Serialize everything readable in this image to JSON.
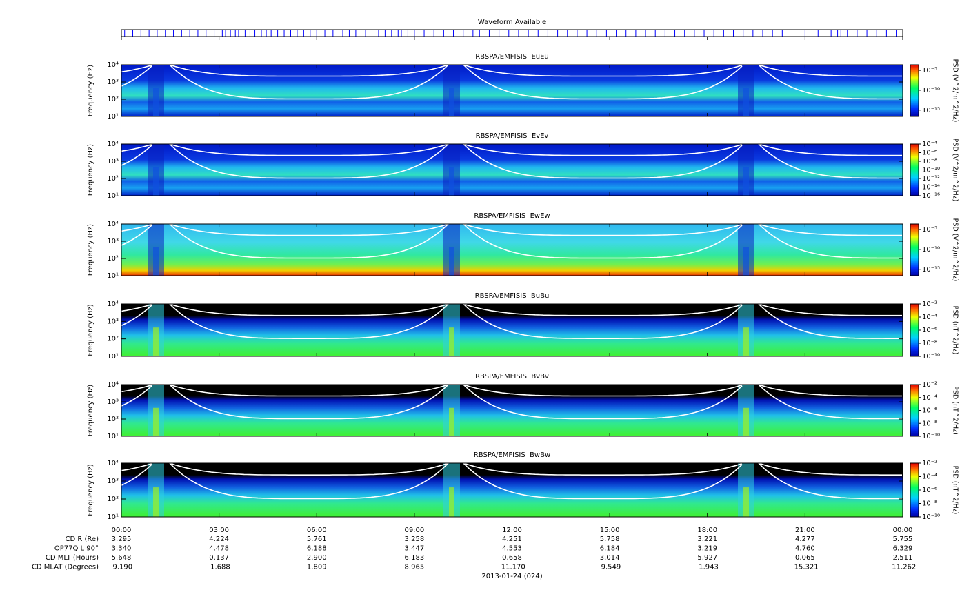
{
  "chart_data": [
    {
      "type": "rug",
      "title": "Waveform Available",
      "color": "#0000ff",
      "x": [
        0.1,
        0.35,
        0.6,
        0.85,
        1.1,
        1.35,
        1.6,
        1.85,
        2.1,
        2.35,
        2.6,
        2.85,
        3.1,
        3.2,
        3.35,
        3.5,
        3.6,
        3.8,
        3.95,
        4.1,
        4.3,
        4.45,
        4.6,
        4.8,
        5.0,
        5.2,
        5.4,
        5.6,
        5.8,
        6.0,
        6.25,
        6.5,
        6.8,
        7.0,
        7.2,
        7.5,
        7.7,
        7.9,
        8.1,
        8.3,
        8.5,
        8.6,
        8.8,
        9.0,
        9.3,
        9.6,
        9.9,
        10.2,
        10.5,
        10.8,
        11.0,
        11.3,
        11.6,
        11.9,
        12.2,
        12.5,
        12.8,
        13.1,
        13.4,
        13.7,
        14.0,
        14.3,
        14.6,
        14.9,
        15.2,
        15.5,
        15.8,
        16.1,
        16.4,
        16.7,
        17.0,
        17.3,
        17.6,
        17.9,
        18.2,
        18.5,
        18.8,
        19.1,
        19.4,
        19.7,
        20.0,
        20.3,
        20.6,
        21.0,
        21.4,
        21.8,
        22.0,
        22.1,
        22.3,
        22.6,
        22.9,
        23.2,
        23.5,
        23.8
      ]
    },
    {
      "type": "spectrogram",
      "title": "RBSPA/EMFISIS  EuEu",
      "ylabel": "Frequency (Hz)",
      "log_y": true,
      "ylim": [
        10,
        10000
      ],
      "yticks": [
        {
          "value": 10,
          "label": "10¹"
        },
        {
          "value": 100,
          "label": "10²"
        },
        {
          "value": 1000,
          "label": "10³"
        },
        {
          "value": 10000,
          "label": "10⁴"
        }
      ],
      "colorbar_label": "PSD (V^2/m^2/Hz)",
      "log_z": true,
      "zlim": [
        2.5e-17,
        0.00025
      ],
      "zticks": [
        {
          "value": 1e-05,
          "label": "10⁻⁵"
        },
        {
          "value": 1e-10,
          "label": "10⁻¹⁰"
        },
        {
          "value": 1e-15,
          "label": "10⁻¹⁵"
        }
      ]
    },
    {
      "type": "spectrogram",
      "title": "RBSPA/EMFISIS  EvEv",
      "ylabel": "Frequency (Hz)",
      "log_y": true,
      "ylim": [
        10,
        10000
      ],
      "yticks": [
        {
          "value": 10,
          "label": "10¹"
        },
        {
          "value": 100,
          "label": "10²"
        },
        {
          "value": 1000,
          "label": "10³"
        },
        {
          "value": 10000,
          "label": "10⁴"
        }
      ],
      "colorbar_label": "PSD (V^2/m^2/Hz)",
      "log_z": true,
      "zlim": [
        1e-16,
        0.0001
      ],
      "zticks": [
        {
          "value": 0.0001,
          "label": "10⁻⁴"
        },
        {
          "value": 1e-06,
          "label": "10⁻⁶"
        },
        {
          "value": 1e-08,
          "label": "10⁻⁸"
        },
        {
          "value": 1e-10,
          "label": "10⁻¹⁰"
        },
        {
          "value": 1e-12,
          "label": "10⁻¹²"
        },
        {
          "value": 1e-14,
          "label": "10⁻¹⁴"
        },
        {
          "value": 1e-16,
          "label": "10⁻¹⁶"
        }
      ]
    },
    {
      "type": "spectrogram",
      "title": "RBSPA/EMFISIS  EwEw",
      "ylabel": "Frequency (Hz)",
      "log_y": true,
      "ylim": [
        10,
        10000
      ],
      "yticks": [
        {
          "value": 10,
          "label": "10¹"
        },
        {
          "value": 100,
          "label": "10²"
        },
        {
          "value": 1000,
          "label": "10³"
        },
        {
          "value": 10000,
          "label": "10⁴"
        }
      ],
      "colorbar_label": "PSD (V^2/m^2/Hz)",
      "log_z": true,
      "zlim": [
        2.5e-17,
        0.00025
      ],
      "zticks": [
        {
          "value": 1e-05,
          "label": "10⁻⁵"
        },
        {
          "value": 1e-10,
          "label": "10⁻¹⁰"
        },
        {
          "value": 1e-15,
          "label": "10⁻¹⁵"
        }
      ]
    },
    {
      "type": "spectrogram",
      "title": "RBSPA/EMFISIS  BuBu",
      "ylabel": "Frequency (Hz)",
      "log_y": true,
      "ylim": [
        10,
        10000
      ],
      "yticks": [
        {
          "value": 10,
          "label": "10¹"
        },
        {
          "value": 100,
          "label": "10²"
        },
        {
          "value": 1000,
          "label": "10³"
        },
        {
          "value": 10000,
          "label": "10⁴"
        }
      ],
      "colorbar_label": "PSD (nT^2/Hz)",
      "log_z": true,
      "zlim": [
        1e-10,
        0.01
      ],
      "zticks": [
        {
          "value": 0.01,
          "label": "10⁻²"
        },
        {
          "value": 0.0001,
          "label": "10⁻⁴"
        },
        {
          "value": 1e-06,
          "label": "10⁻⁶"
        },
        {
          "value": 1e-08,
          "label": "10⁻⁸"
        },
        {
          "value": 1e-10,
          "label": "10⁻¹⁰"
        }
      ]
    },
    {
      "type": "spectrogram",
      "title": "RBSPA/EMFISIS  BvBv",
      "ylabel": "Frequency (Hz)",
      "log_y": true,
      "ylim": [
        10,
        10000
      ],
      "yticks": [
        {
          "value": 10,
          "label": "10¹"
        },
        {
          "value": 100,
          "label": "10²"
        },
        {
          "value": 1000,
          "label": "10³"
        },
        {
          "value": 10000,
          "label": "10⁴"
        }
      ],
      "colorbar_label": "PSD (nT^2/Hz)",
      "log_z": true,
      "zlim": [
        1e-10,
        0.01
      ],
      "zticks": [
        {
          "value": 0.01,
          "label": "10⁻²"
        },
        {
          "value": 0.0001,
          "label": "10⁻⁴"
        },
        {
          "value": 1e-06,
          "label": "10⁻⁶"
        },
        {
          "value": 1e-08,
          "label": "10⁻⁸"
        },
        {
          "value": 1e-10,
          "label": "10⁻¹⁰"
        }
      ]
    },
    {
      "type": "spectrogram",
      "title": "RBSPA/EMFISIS  BwBw",
      "ylabel": "Frequency (Hz)",
      "log_y": true,
      "ylim": [
        10,
        10000
      ],
      "yticks": [
        {
          "value": 10,
          "label": "10¹"
        },
        {
          "value": 100,
          "label": "10²"
        },
        {
          "value": 1000,
          "label": "10³"
        },
        {
          "value": 10000,
          "label": "10⁴"
        }
      ],
      "colorbar_label": "PSD (nT^2/Hz)",
      "log_z": true,
      "zlim": [
        1e-10,
        0.01
      ],
      "zticks": [
        {
          "value": 0.01,
          "label": "10⁻²"
        },
        {
          "value": 0.0001,
          "label": "10⁻⁴"
        },
        {
          "value": 1e-06,
          "label": "10⁻⁶"
        },
        {
          "value": 1e-08,
          "label": "10⁻⁸"
        },
        {
          "value": 1e-10,
          "label": "10⁻¹⁰"
        }
      ]
    }
  ],
  "x_axis": {
    "xlim": [
      0,
      24
    ],
    "xticks": [
      {
        "value": 0,
        "label": "00:00"
      },
      {
        "value": 3,
        "label": "03:00"
      },
      {
        "value": 6,
        "label": "06:00"
      },
      {
        "value": 9,
        "label": "09:00"
      },
      {
        "value": 12,
        "label": "12:00"
      },
      {
        "value": 15,
        "label": "15:00"
      },
      {
        "value": 18,
        "label": "18:00"
      },
      {
        "value": 21,
        "label": "21:00"
      },
      {
        "value": 24,
        "label": "00:00"
      }
    ]
  },
  "ephemeris": {
    "rows": [
      {
        "label": "CD R (Re)",
        "values": [
          "3.295",
          "4.224",
          "5.761",
          "3.258",
          "4.251",
          "5.758",
          "3.221",
          "4.277",
          "5.755"
        ]
      },
      {
        "label": "OP77Q L 90°",
        "values": [
          "3.340",
          "4.478",
          "6.188",
          "3.447",
          "4.553",
          "6.184",
          "3.219",
          "4.760",
          "6.329"
        ]
      },
      {
        "label": "CD MLT (Hours)",
        "values": [
          "5.648",
          "0.137",
          "2.900",
          "6.183",
          "0.658",
          "3.014",
          "5.927",
          "0.065",
          "2.511"
        ]
      },
      {
        "label": "CD MLAT (Degrees)",
        "values": [
          "-9.190",
          "-1.688",
          "1.809",
          "8.965",
          "-11.170",
          "-9.549",
          "-1.943",
          "-15.321",
          "-11.262"
        ]
      }
    ]
  },
  "date": "2013-01-24 (024)"
}
